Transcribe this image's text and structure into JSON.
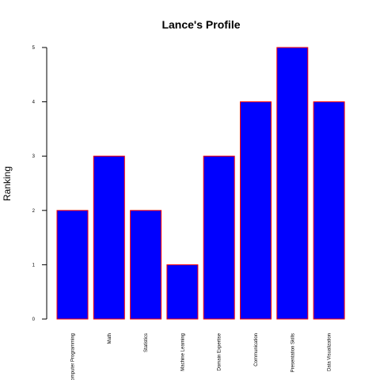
{
  "chart_data": {
    "type": "bar",
    "title": "Lance's Profile",
    "xlabel": "",
    "ylabel": "Ranking",
    "categories": [
      "Computer Programming",
      "Math",
      "Statistics",
      "Machine Learning",
      "Domain Expertise",
      "Communication",
      "Presentation Skills",
      "Data Visualization"
    ],
    "values": [
      2,
      3,
      2,
      1,
      3,
      4,
      5,
      4
    ],
    "ylim": [
      0,
      5
    ],
    "yticks": [
      "0",
      "1",
      "2",
      "3",
      "4",
      "5"
    ],
    "grid": false,
    "bar_fill": "#0000ff",
    "bar_border": "#ff0000"
  }
}
